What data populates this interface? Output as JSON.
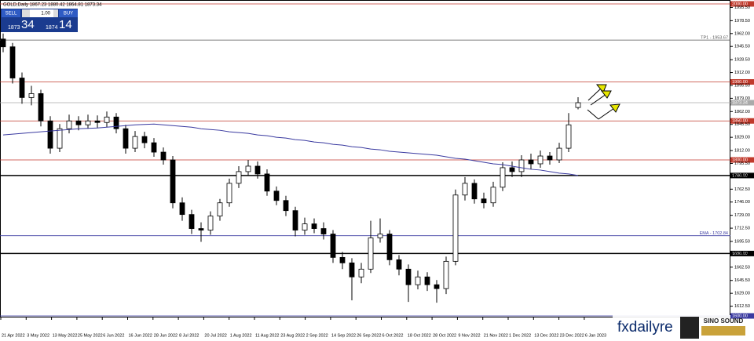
{
  "chart_data": {
    "type": "candlestick",
    "title": "GOLD,Daily 1867.23 1880.42 1864.81 1873.34",
    "ylim": [
      1598,
      2002
    ],
    "yticks": [
      {
        "value": 1995.5,
        "label": "1995.50"
      },
      {
        "value": 1978.5,
        "label": "1978.50"
      },
      {
        "value": 1962,
        "label": "1962.00"
      },
      {
        "value": 1945.5,
        "label": "1945.50"
      },
      {
        "value": 1928.5,
        "label": "1928.50"
      },
      {
        "value": 1912,
        "label": "1912.00"
      },
      {
        "value": 1895.5,
        "label": "1895.50"
      },
      {
        "value": 1879,
        "label": "1879.00"
      },
      {
        "value": 1862,
        "label": "1862.00"
      },
      {
        "value": 1845.5,
        "label": "1845.50"
      },
      {
        "value": 1829,
        "label": "1829.00"
      },
      {
        "value": 1812,
        "label": "1812.00"
      },
      {
        "value": 1795.5,
        "label": "1795.50"
      },
      {
        "value": 1779,
        "label": "1779.00"
      },
      {
        "value": 1762.5,
        "label": "1762.50"
      },
      {
        "value": 1746,
        "label": "1746.00"
      },
      {
        "value": 1729,
        "label": "1729.00"
      },
      {
        "value": 1712.5,
        "label": "1712.50"
      },
      {
        "value": 1695.5,
        "label": "1695.50"
      },
      {
        "value": 1679,
        "label": "1679.00"
      },
      {
        "value": 1662.5,
        "label": "1662.50"
      },
      {
        "value": 1645.5,
        "label": "1645.50"
      },
      {
        "value": 1629,
        "label": "1629.00"
      },
      {
        "value": 1612.5,
        "label": "1612.50"
      }
    ],
    "xtick_labels": [
      "21 Apr 2022",
      "3 May 2022",
      "13 May 2022",
      "25 May 2022",
      "6 Jun 2022",
      "16 Jun 2022",
      "28 Jun 2022",
      "8 Jul 2022",
      "20 Jul 2022",
      "1 Aug 2022",
      "11 Aug 2022",
      "23 Aug 2022",
      "2 Sep 2022",
      "14 Sep 2022",
      "26 Sep 2022",
      "6 Oct 2022",
      "18 Oct 2022",
      "28 Oct 2022",
      "9 Nov 2022",
      "21 Nov 2022",
      "1 Dec 2022",
      "13 Dec 2022",
      "23 Dec 2022",
      "6 Jan 2023"
    ],
    "open": [
      1955,
      1945,
      1905,
      1880,
      1885,
      1850,
      1815,
      1840,
      1850,
      1845,
      1850,
      1848,
      1855,
      1840,
      1815,
      1830,
      1822,
      1810,
      1800,
      1745,
      1730,
      1712,
      1710,
      1728,
      1745,
      1770,
      1785,
      1792,
      1782,
      1760,
      1748,
      1735,
      1710,
      1718,
      1712,
      1705,
      1675,
      1668,
      1650,
      1660,
      1700,
      1705,
      1672,
      1660,
      1640,
      1650,
      1640,
      1635,
      1670,
      1755,
      1770,
      1750,
      1745,
      1765,
      1790,
      1785,
      1800,
      1795,
      1805,
      1800,
      1815,
      1867.23
    ],
    "high": [
      1962,
      1950,
      1912,
      1895,
      1890,
      1856,
      1846,
      1858,
      1856,
      1858,
      1857,
      1862,
      1860,
      1845,
      1837,
      1836,
      1828,
      1816,
      1805,
      1752,
      1736,
      1720,
      1734,
      1750,
      1776,
      1792,
      1800,
      1798,
      1788,
      1766,
      1754,
      1740,
      1726,
      1725,
      1720,
      1710,
      1682,
      1674,
      1668,
      1722,
      1725,
      1710,
      1678,
      1666,
      1658,
      1656,
      1646,
      1676,
      1762,
      1778,
      1775,
      1758,
      1772,
      1797,
      1798,
      1806,
      1808,
      1812,
      1810,
      1822,
      1860,
      1880.42
    ],
    "low": [
      1938,
      1898,
      1872,
      1870,
      1843,
      1808,
      1810,
      1834,
      1838,
      1840,
      1841,
      1842,
      1834,
      1808,
      1810,
      1815,
      1804,
      1794,
      1738,
      1722,
      1705,
      1695,
      1704,
      1722,
      1740,
      1764,
      1780,
      1776,
      1754,
      1742,
      1728,
      1702,
      1704,
      1706,
      1698,
      1668,
      1660,
      1620,
      1642,
      1655,
      1694,
      1665,
      1652,
      1618,
      1634,
      1632,
      1617,
      1628,
      1665,
      1748,
      1744,
      1738,
      1740,
      1760,
      1778,
      1778,
      1788,
      1790,
      1794,
      1796,
      1810,
      1864.81
    ],
    "close": [
      1945,
      1905,
      1880,
      1885,
      1850,
      1815,
      1840,
      1850,
      1845,
      1850,
      1848,
      1855,
      1840,
      1815,
      1830,
      1822,
      1810,
      1800,
      1745,
      1730,
      1712,
      1710,
      1728,
      1745,
      1770,
      1785,
      1792,
      1782,
      1760,
      1748,
      1735,
      1710,
      1718,
      1712,
      1705,
      1675,
      1668,
      1650,
      1660,
      1700,
      1705,
      1672,
      1660,
      1640,
      1650,
      1640,
      1635,
      1670,
      1755,
      1770,
      1750,
      1745,
      1765,
      1790,
      1785,
      1800,
      1795,
      1805,
      1800,
      1815,
      1845,
      1873.34
    ],
    "ma": {
      "color": "#3a3aa0",
      "values": [
        1832,
        1833,
        1834,
        1835,
        1836,
        1837,
        1838,
        1839,
        1840,
        1840.5,
        1841,
        1842,
        1843,
        1844,
        1845,
        1845.5,
        1846,
        1845,
        1844,
        1843,
        1842,
        1840,
        1839,
        1838,
        1836,
        1835,
        1834,
        1832,
        1831,
        1829,
        1828,
        1826,
        1825,
        1823,
        1822,
        1820,
        1819,
        1817,
        1816,
        1814,
        1813,
        1811,
        1810,
        1809,
        1808,
        1807,
        1806,
        1804,
        1802,
        1801,
        1799,
        1797,
        1795,
        1794,
        1792,
        1790,
        1788,
        1787,
        1785,
        1783,
        1782,
        1780
      ]
    },
    "levels": [
      {
        "value": 2000,
        "label": "2000.00",
        "color": "#c0392b",
        "style": "box"
      },
      {
        "value": 1953.67,
        "label": "TP1 - 1953.67",
        "color": "#555555",
        "style": "text"
      },
      {
        "value": 1900,
        "label": "1900.00",
        "color": "#c0392b",
        "style": "box"
      },
      {
        "value": 1873.34,
        "color": "#aaaaaa",
        "style": "box"
      },
      {
        "value": 1850,
        "label": "1850.00",
        "color": "#c0392b",
        "style": "box"
      },
      {
        "value": 1800,
        "label": "1800.00",
        "color": "#c0392b",
        "style": "box"
      },
      {
        "value": 1780,
        "label": "1780.00",
        "color": "#000000",
        "style": "box"
      },
      {
        "value": 1702.84,
        "label": "EMA - 1702.84",
        "color": "#3a3aa0",
        "style": "text"
      },
      {
        "value": 1680,
        "label": "1680.00",
        "color": "#000000",
        "style": "box"
      },
      {
        "value": 1600,
        "label": "1600.00",
        "color": "#3a3aa0",
        "style": "box"
      }
    ],
    "trade_panel": {
      "sell": "SELL",
      "buy": "BUY",
      "lot": "1.00",
      "sell_big": "1873",
      "sell_small": "34",
      "buy_big": "1874",
      "buy_small": "14"
    },
    "watermark": {
      "text": "fxdailyre",
      "logo": "SINO SOUND"
    }
  }
}
